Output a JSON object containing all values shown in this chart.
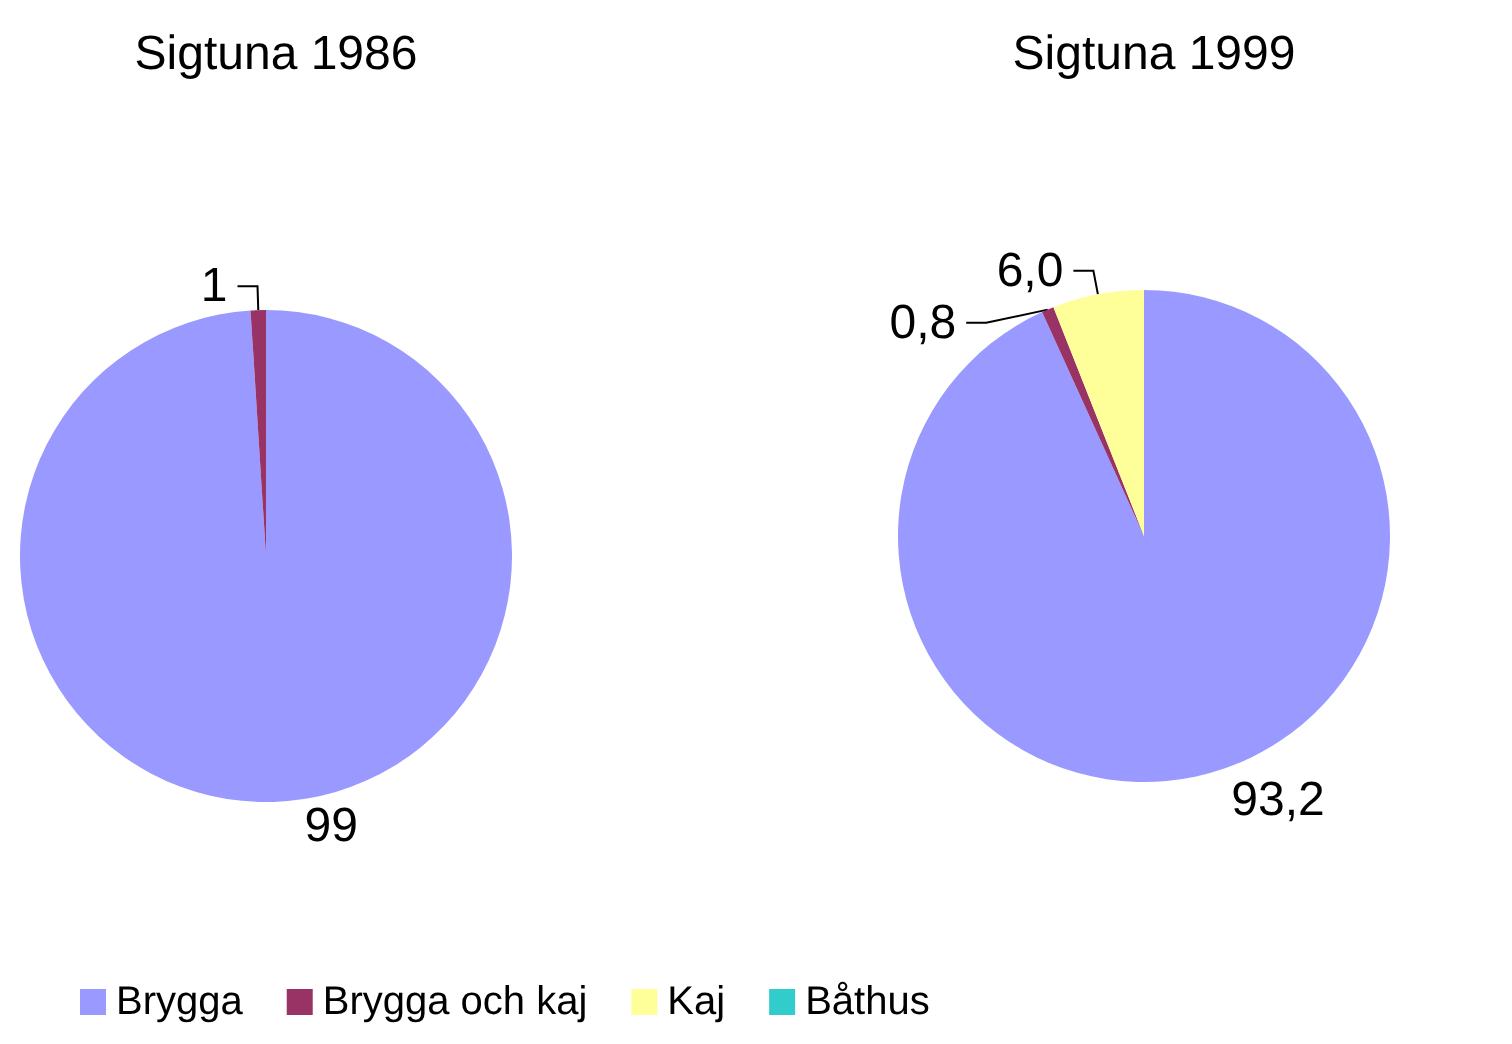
{
  "chart_data": [
    {
      "type": "pie",
      "title": "Sigtuna 1986",
      "categories": [
        "Brygga",
        "Brygga och kaj",
        "Kaj",
        "Båthus"
      ],
      "values": [
        99,
        1,
        0,
        0
      ],
      "value_labels": [
        "99",
        "1",
        null,
        null
      ],
      "colors": [
        "#9999ff",
        "#993366",
        "#ffff99",
        "#33cccc"
      ],
      "legend": "bottom"
    },
    {
      "type": "pie",
      "title": "Sigtuna 1999",
      "categories": [
        null,
        null,
        null,
        null
      ],
      "values": [
        93.2,
        0.8,
        6.0,
        0
      ],
      "value_labels": [
        "93,2",
        "0,8",
        "6,0",
        null
      ],
      "colors": [
        "#9999ff",
        "#993366",
        "#ffff99",
        "#33cccc"
      ],
      "legend": false
    }
  ]
}
